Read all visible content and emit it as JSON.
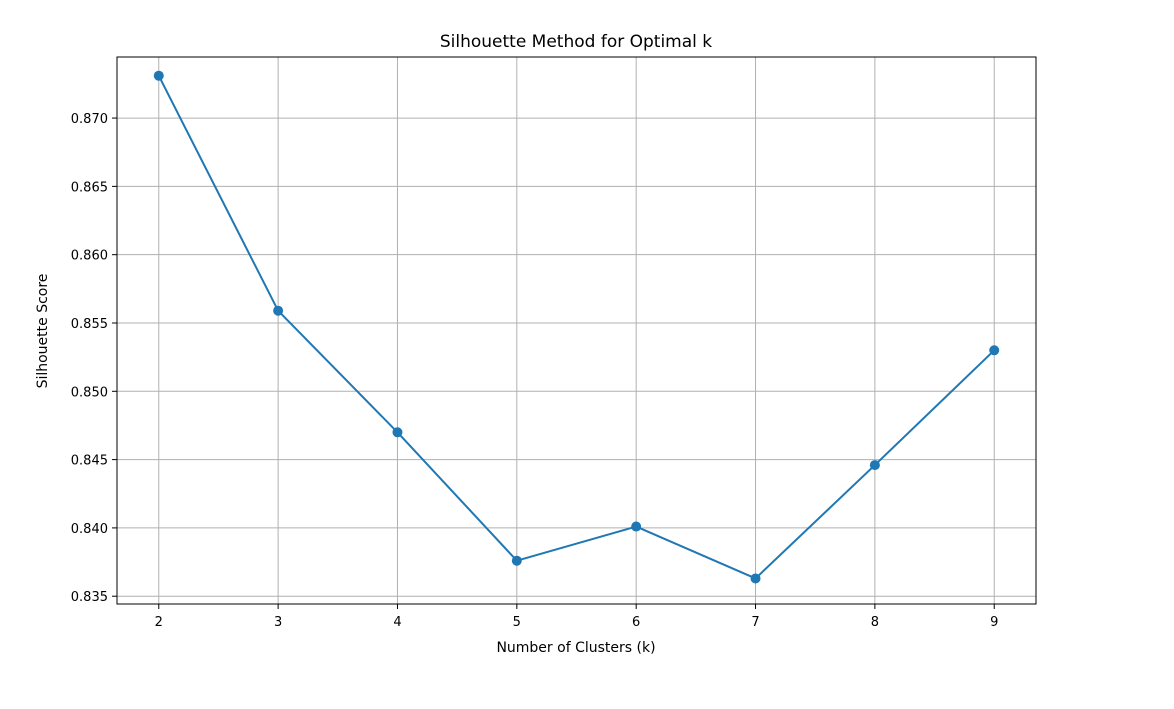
{
  "chart_data": {
    "type": "line",
    "title": "Silhouette Method for Optimal k",
    "xlabel": "Number of Clusters (k)",
    "ylabel": "Silhouette Score",
    "x": [
      2,
      3,
      4,
      5,
      6,
      7,
      8,
      9
    ],
    "series": [
      {
        "values": [
          0.8731,
          0.8559,
          0.847,
          0.8376,
          0.8401,
          0.8363,
          0.8446,
          0.853
        ],
        "color": "#1f77b4",
        "marker": "circle"
      }
    ],
    "xlim": [
      1.65,
      9.35
    ],
    "ylim": [
      0.83443,
      0.87447
    ],
    "xticks": [
      "2",
      "3",
      "4",
      "5",
      "6",
      "7",
      "8",
      "9"
    ],
    "yticks": [
      "0.835",
      "0.840",
      "0.845",
      "0.850",
      "0.855",
      "0.860",
      "0.865",
      "0.870"
    ],
    "grid": true
  }
}
